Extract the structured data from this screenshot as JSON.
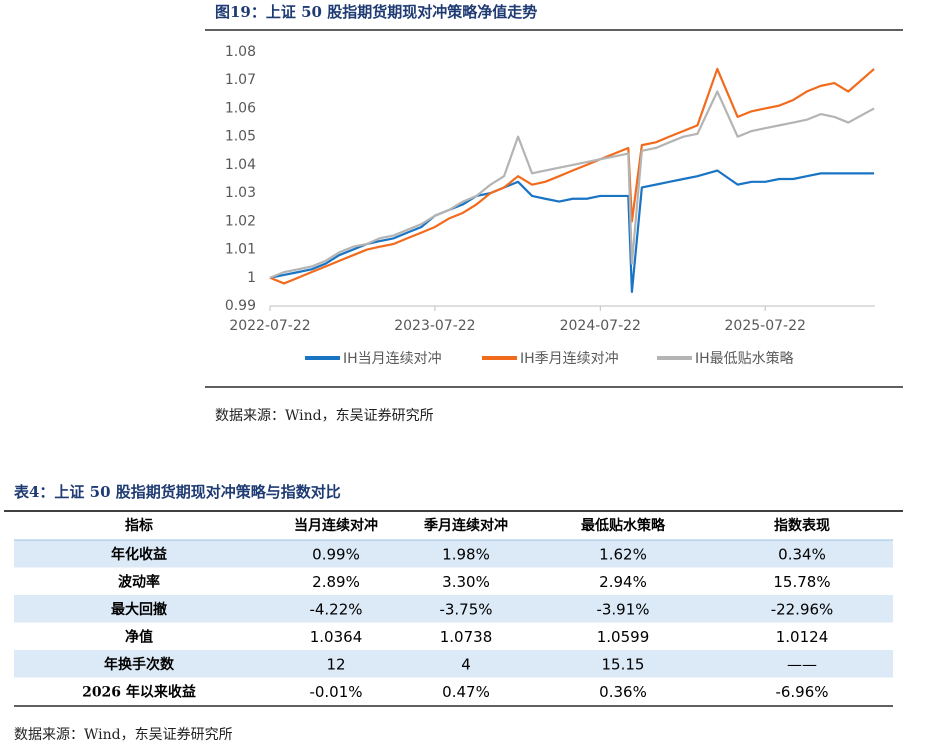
{
  "figure": {
    "caption": "图19：上证 50 股指期货期现对冲策略净值走势",
    "source": "数据来源：Wind，东吴证券研究所"
  },
  "chart_data": {
    "type": "line",
    "x": [
      "2022-07-22",
      "2022-08-22",
      "2022-09-22",
      "2022-10-22",
      "2022-11-22",
      "2022-12-22",
      "2023-01-22",
      "2023-02-22",
      "2023-03-22",
      "2023-04-22",
      "2023-05-22",
      "2023-06-22",
      "2023-07-22",
      "2023-08-22",
      "2023-09-22",
      "2023-10-22",
      "2023-11-22",
      "2023-12-22",
      "2024-01-22",
      "2024-02-22",
      "2024-03-22",
      "2024-04-22",
      "2024-05-22",
      "2024-06-22",
      "2024-07-22",
      "2024-08-22",
      "2024-09-22",
      "2024-09-30",
      "2024-10-22",
      "2024-11-22",
      "2024-12-22",
      "2025-01-22",
      "2025-02-22",
      "2025-04-07",
      "2025-05-22",
      "2025-06-22",
      "2025-07-22",
      "2025-08-22",
      "2025-09-22",
      "2025-10-22",
      "2025-11-22",
      "2025-12-22",
      "2026-01-22",
      "2026-03-20"
    ],
    "series": [
      {
        "name": "IH当月连续对冲",
        "color": "#1a74c4",
        "values": [
          1.0,
          1.001,
          1.002,
          1.003,
          1.005,
          1.008,
          1.01,
          1.012,
          1.013,
          1.014,
          1.016,
          1.018,
          1.022,
          1.024,
          1.026,
          1.029,
          1.03,
          1.032,
          1.034,
          1.029,
          1.028,
          1.027,
          1.028,
          1.028,
          1.029,
          1.029,
          1.029,
          0.995,
          1.032,
          1.033,
          1.034,
          1.035,
          1.036,
          1.038,
          1.033,
          1.034,
          1.034,
          1.035,
          1.035,
          1.036,
          1.037,
          1.037,
          1.037,
          1.037
        ]
      },
      {
        "name": "IH季月连续对冲",
        "color": "#f26b1d",
        "values": [
          1.0,
          0.998,
          1.0,
          1.002,
          1.004,
          1.006,
          1.008,
          1.01,
          1.011,
          1.012,
          1.014,
          1.016,
          1.018,
          1.021,
          1.023,
          1.026,
          1.03,
          1.032,
          1.036,
          1.033,
          1.034,
          1.036,
          1.038,
          1.04,
          1.042,
          1.044,
          1.046,
          1.02,
          1.047,
          1.048,
          1.05,
          1.052,
          1.054,
          1.074,
          1.057,
          1.059,
          1.06,
          1.061,
          1.063,
          1.066,
          1.068,
          1.069,
          1.066,
          1.074
        ]
      },
      {
        "name": "IH最低贴水策略",
        "color": "#b4b4b4",
        "values": [
          1.0,
          1.002,
          1.003,
          1.004,
          1.006,
          1.009,
          1.011,
          1.012,
          1.014,
          1.015,
          1.017,
          1.019,
          1.022,
          1.024,
          1.027,
          1.029,
          1.033,
          1.036,
          1.05,
          1.037,
          1.038,
          1.039,
          1.04,
          1.041,
          1.042,
          1.043,
          1.044,
          1.005,
          1.045,
          1.046,
          1.048,
          1.05,
          1.051,
          1.066,
          1.05,
          1.052,
          1.053,
          1.054,
          1.055,
          1.056,
          1.058,
          1.057,
          1.055,
          1.06
        ]
      }
    ],
    "xlim": [
      "2022-07-22",
      "2026-03-22"
    ],
    "xticks": [
      "2022-07-22",
      "2023-07-22",
      "2024-07-22",
      "2025-07-22"
    ],
    "ylim": [
      0.99,
      1.08
    ],
    "yticks": [
      0.99,
      1,
      1.01,
      1.02,
      1.03,
      1.04,
      1.05,
      1.06,
      1.07,
      1.08
    ],
    "legend": "bottom"
  },
  "table": {
    "caption": "表4：上证 50 股指期货期现对冲策略与指数对比",
    "header": [
      "指标",
      "当月连续对冲",
      "季月连续对冲",
      "最低贴水策略",
      "指数表现"
    ],
    "rows": [
      [
        "年化收益",
        "0.99%",
        "1.98%",
        "1.62%",
        "0.34%"
      ],
      [
        "波动率",
        "2.89%",
        "3.30%",
        "2.94%",
        "15.78%"
      ],
      [
        "最大回撤",
        "-4.22%",
        "-3.75%",
        "-3.91%",
        "-22.96%"
      ],
      [
        "净值",
        "1.0364",
        "1.0738",
        "1.0599",
        "1.0124"
      ],
      [
        "年换手次数",
        "12",
        "4",
        "15.15",
        "——"
      ],
      [
        "2026 年以来收益",
        "-0.01%",
        "0.47%",
        "0.36%",
        "-6.96%"
      ]
    ],
    "source": "数据来源：Wind，东吴证券研究所"
  }
}
